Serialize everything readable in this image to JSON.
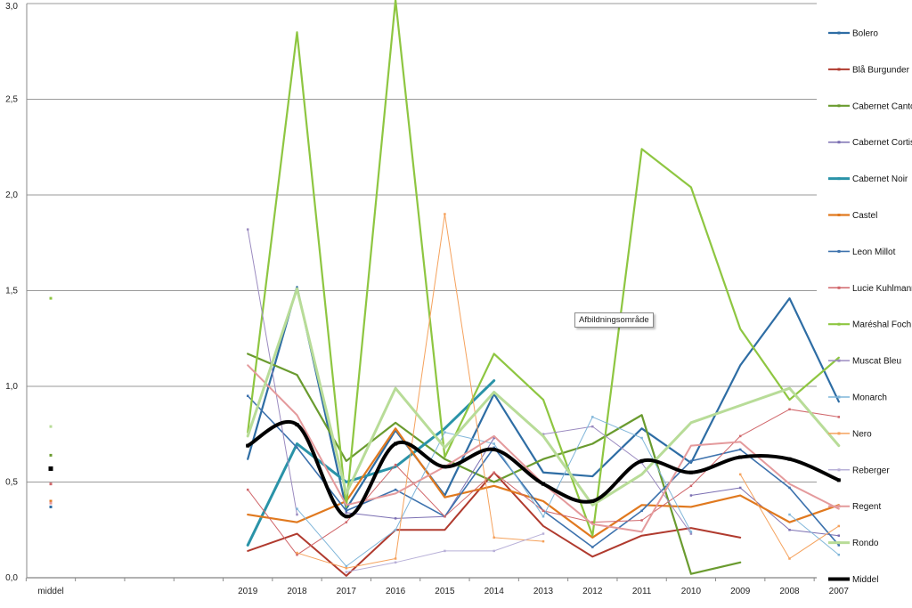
{
  "chart_data": {
    "type": "line",
    "title": "",
    "xlabel": "",
    "ylabel": "",
    "ylim": [
      0,
      3.0
    ],
    "yticks": [
      "0,0",
      "0,5",
      "1,0",
      "1,5",
      "2,0",
      "2,5",
      "3,0"
    ],
    "categories": [
      "middel",
      "",
      "",
      "",
      "2019",
      "2018",
      "2017",
      "2016",
      "2015",
      "2014",
      "2013",
      "2012",
      "2011",
      "2010",
      "2009",
      "2008",
      "2007"
    ],
    "tooltip": "Afbildningsområde",
    "legend_position": "right",
    "series": [
      {
        "name": "Bolero",
        "color": "#2e6da4",
        "width": 2.2,
        "values": [
          0.37,
          null,
          null,
          null,
          0.62,
          1.52,
          0.36,
          0.77,
          0.43,
          0.96,
          0.55,
          0.53,
          0.78,
          0.6,
          1.11,
          1.46,
          0.92
        ]
      },
      {
        "name": "Blå Burgunder",
        "color": "#b03a2e",
        "width": 2,
        "values": [
          null,
          null,
          null,
          null,
          0.14,
          0.23,
          0.01,
          0.25,
          0.25,
          0.55,
          0.27,
          0.11,
          0.22,
          0.26,
          0.21,
          null,
          null
        ]
      },
      {
        "name": "Cabernet Cantor",
        "color": "#6a9b2f",
        "width": 2.2,
        "values": [
          0.64,
          null,
          null,
          null,
          1.17,
          1.06,
          0.61,
          0.81,
          0.62,
          0.5,
          0.62,
          0.7,
          0.85,
          0.02,
          0.08,
          null,
          null
        ]
      },
      {
        "name": "Cabernet Cortis",
        "color": "#7b6fb2",
        "width": 1,
        "values": [
          null,
          null,
          null,
          null,
          null,
          null,
          0.34,
          0.31,
          0.32,
          0.73,
          null,
          null,
          null,
          0.43,
          0.47,
          0.25,
          0.22
        ]
      },
      {
        "name": "Cabernet Noir",
        "color": "#2a93a8",
        "width": 3,
        "values": [
          null,
          null,
          null,
          null,
          0.17,
          0.7,
          0.5,
          0.58,
          0.78,
          1.03,
          null,
          null,
          null,
          null,
          null,
          null,
          null
        ]
      },
      {
        "name": "Castel",
        "color": "#e0791f",
        "width": 2.2,
        "values": [
          0.4,
          null,
          null,
          null,
          0.33,
          0.29,
          0.4,
          0.78,
          0.42,
          0.48,
          0.4,
          0.21,
          0.38,
          0.37,
          0.43,
          0.29,
          0.38
        ]
      },
      {
        "name": "Leon Millot",
        "color": "#3d72ad",
        "width": 1.6,
        "values": [
          null,
          null,
          null,
          null,
          0.95,
          0.68,
          0.35,
          0.46,
          0.32,
          0.68,
          0.35,
          0.16,
          0.35,
          0.61,
          0.67,
          0.47,
          0.17
        ]
      },
      {
        "name": "Lucie Kuhlmann",
        "color": "#d0666a",
        "width": 1,
        "values": [
          0.49,
          null,
          null,
          null,
          0.46,
          0.12,
          0.29,
          0.59,
          0.32,
          0.55,
          0.35,
          0.29,
          0.3,
          0.48,
          0.74,
          0.88,
          0.84
        ]
      },
      {
        "name": "Maréshal Foch",
        "color": "#8ec641",
        "width": 2.2,
        "values": [
          1.46,
          null,
          null,
          null,
          0.76,
          2.85,
          0.37,
          3.1,
          0.63,
          1.17,
          0.93,
          0.22,
          2.24,
          2.04,
          1.3,
          0.93,
          1.15
        ]
      },
      {
        "name": "Muscat Bleu",
        "color": "#9b8bc0",
        "width": 1,
        "values": [
          null,
          null,
          null,
          null,
          1.82,
          0.33,
          null,
          null,
          null,
          null,
          0.75,
          0.79,
          0.6,
          0.23,
          null,
          null,
          null
        ]
      },
      {
        "name": "Monarch",
        "color": "#7fb5d9",
        "width": 1,
        "values": [
          null,
          null,
          null,
          null,
          null,
          0.36,
          0.06,
          0.25,
          0.76,
          0.7,
          0.32,
          0.84,
          0.73,
          0.24,
          null,
          0.33,
          0.12
        ]
      },
      {
        "name": "Nero",
        "color": "#f5a25d",
        "width": 1,
        "values": [
          null,
          null,
          null,
          null,
          null,
          0.13,
          0.05,
          0.1,
          1.9,
          0.21,
          0.19,
          null,
          null,
          null,
          0.54,
          0.1,
          0.27
        ]
      },
      {
        "name": "Reberger",
        "color": "#b8b0d8",
        "width": 1,
        "values": [
          null,
          null,
          null,
          null,
          null,
          null,
          0.03,
          0.08,
          0.14,
          0.14,
          0.23,
          null,
          null,
          null,
          null,
          null,
          null
        ]
      },
      {
        "name": "Regent",
        "color": "#e49a9c",
        "width": 2,
        "values": [
          0.39,
          null,
          null,
          null,
          1.11,
          0.85,
          0.38,
          0.44,
          0.58,
          0.74,
          0.49,
          0.28,
          0.24,
          0.69,
          0.71,
          0.49,
          0.36
        ]
      },
      {
        "name": "Rondo",
        "color": "#b8dc98",
        "width": 3,
        "values": [
          0.79,
          null,
          null,
          null,
          0.74,
          1.51,
          0.44,
          0.99,
          0.68,
          0.97,
          0.74,
          0.38,
          0.54,
          0.81,
          0.9,
          0.99,
          0.69
        ]
      },
      {
        "name": "Middel",
        "color": "#000000",
        "width": 4,
        "smooth": true,
        "values": [
          0.57,
          null,
          null,
          null,
          0.69,
          0.8,
          0.32,
          0.7,
          0.58,
          0.67,
          0.49,
          0.4,
          0.61,
          0.55,
          0.63,
          0.62,
          0.51
        ]
      }
    ]
  }
}
